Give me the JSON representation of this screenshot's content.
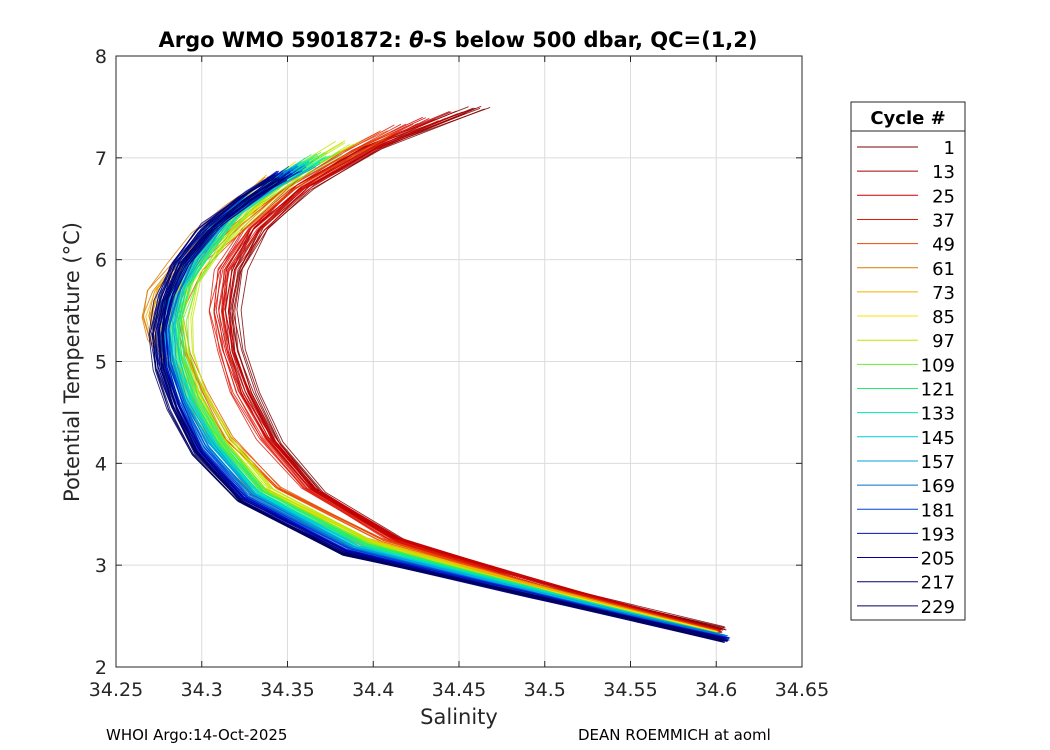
{
  "chart_data": {
    "type": "line",
    "title_prefix": "Argo WMO 5901872: ",
    "title_symbol": "θ",
    "title_suffix": "-S below 500 dbar,  QC=(1,2)",
    "xlabel": "Salinity",
    "ylabel": "Potential Temperature (°C)",
    "xlim": [
      34.25,
      34.65
    ],
    "ylim": [
      2,
      8
    ],
    "xticks": [
      34.25,
      34.3,
      34.35,
      34.4,
      34.45,
      34.5,
      34.55,
      34.6,
      34.65
    ],
    "xtick_labels": [
      "34.25",
      "34.3",
      "34.35",
      "34.4",
      "34.45",
      "34.5",
      "34.55",
      "34.6",
      "34.65"
    ],
    "yticks": [
      2,
      3,
      4,
      5,
      6,
      7,
      8
    ],
    "ytick_labels": [
      "2",
      "3",
      "4",
      "5",
      "6",
      "7",
      "8"
    ],
    "grid": true,
    "legend": {
      "title": "Cycle #",
      "position": "right",
      "entries": [
        {
          "label": "1",
          "color": "#800000"
        },
        {
          "label": "13",
          "color": "#a60000"
        },
        {
          "label": "25",
          "color": "#cc0000"
        },
        {
          "label": "37",
          "color": "#e01a0a"
        },
        {
          "label": "49",
          "color": "#e84c00"
        },
        {
          "label": "61",
          "color": "#d97a00"
        },
        {
          "label": "73",
          "color": "#f0b000"
        },
        {
          "label": "85",
          "color": "#ffe000"
        },
        {
          "label": "97",
          "color": "#bfe600"
        },
        {
          "label": "109",
          "color": "#66ee33"
        },
        {
          "label": "121",
          "color": "#22ee77"
        },
        {
          "label": "133",
          "color": "#00e6b0"
        },
        {
          "label": "145",
          "color": "#00ccdd"
        },
        {
          "label": "157",
          "color": "#00a0dd"
        },
        {
          "label": "169",
          "color": "#0070cc"
        },
        {
          "label": "181",
          "color": "#0040dd"
        },
        {
          "label": "193",
          "color": "#0010bb"
        },
        {
          "label": "205",
          "color": "#000099"
        },
        {
          "label": "217",
          "color": "#000077"
        },
        {
          "label": "229",
          "color": "#00005e"
        }
      ]
    },
    "series": [
      {
        "name": "1",
        "S": [
          34.462,
          34.4,
          34.36,
          34.335,
          34.322,
          34.318,
          34.322,
          34.33,
          34.345,
          34.37,
          34.42,
          34.5,
          34.605
        ],
        "T": [
          7.5,
          7.1,
          6.7,
          6.3,
          5.9,
          5.5,
          5.1,
          4.7,
          4.2,
          3.7,
          3.2,
          2.8,
          2.38
        ]
      },
      {
        "name": "13",
        "S": [
          34.45,
          34.4,
          34.36,
          34.333,
          34.318,
          34.315,
          34.318,
          34.326,
          34.34,
          34.365,
          34.415,
          34.5,
          34.603
        ],
        "T": [
          7.45,
          7.1,
          6.72,
          6.3,
          5.9,
          5.5,
          5.1,
          4.7,
          4.25,
          3.75,
          3.25,
          2.82,
          2.36
        ]
      },
      {
        "name": "25",
        "S": [
          34.435,
          34.395,
          34.358,
          34.33,
          34.315,
          34.312,
          34.316,
          34.325,
          34.34,
          34.365,
          34.415,
          34.5,
          34.602
        ],
        "T": [
          7.38,
          7.08,
          6.7,
          6.3,
          5.9,
          5.5,
          5.1,
          4.7,
          4.25,
          3.75,
          3.25,
          2.82,
          2.35
        ]
      },
      {
        "name": "37",
        "S": [
          34.42,
          34.39,
          34.355,
          34.328,
          34.312,
          34.308,
          34.312,
          34.32,
          34.335,
          34.36,
          34.41,
          34.5,
          34.602
        ],
        "T": [
          7.32,
          7.06,
          6.7,
          6.3,
          5.9,
          5.5,
          5.1,
          4.7,
          4.25,
          3.75,
          3.25,
          2.8,
          2.35
        ]
      },
      {
        "name": "49",
        "S": [
          34.41,
          34.385,
          34.35,
          34.32,
          34.295,
          34.285,
          34.29,
          34.3,
          34.315,
          34.345,
          34.405,
          34.49,
          34.6
        ],
        "T": [
          7.25,
          7.05,
          6.7,
          6.3,
          5.9,
          5.5,
          5.1,
          4.7,
          4.25,
          3.75,
          3.25,
          2.82,
          2.34
        ]
      },
      {
        "name": "61",
        "S": [
          34.34,
          34.32,
          34.3,
          34.285,
          34.272,
          34.268,
          34.272,
          34.285,
          34.3,
          34.33,
          34.395,
          34.49,
          34.6
        ],
        "T": [
          6.8,
          6.55,
          6.25,
          5.95,
          5.7,
          5.45,
          5.2,
          4.9,
          4.4,
          3.7,
          3.2,
          2.82,
          2.34
        ]
      },
      {
        "name": "73",
        "S": [
          34.345,
          34.325,
          34.305,
          34.29,
          34.278,
          34.272,
          34.275,
          34.288,
          34.302,
          34.33,
          34.395,
          34.49,
          34.6
        ],
        "T": [
          6.82,
          6.55,
          6.25,
          5.95,
          5.7,
          5.45,
          5.2,
          4.85,
          4.4,
          3.8,
          3.25,
          2.82,
          2.33
        ]
      },
      {
        "name": "85",
        "S": [
          34.36,
          34.34,
          34.318,
          34.3,
          34.288,
          34.282,
          34.284,
          34.292,
          34.308,
          34.335,
          34.398,
          34.49,
          34.6
        ],
        "T": [
          6.95,
          6.7,
          6.35,
          6.0,
          5.7,
          5.4,
          5.1,
          4.75,
          4.3,
          3.75,
          3.22,
          2.8,
          2.33
        ]
      },
      {
        "name": "97",
        "S": [
          34.385,
          34.36,
          34.335,
          34.31,
          34.296,
          34.29,
          34.292,
          34.3,
          34.315,
          34.34,
          34.4,
          34.49,
          34.6
        ],
        "T": [
          7.15,
          6.9,
          6.55,
          6.15,
          5.8,
          5.45,
          5.1,
          4.7,
          4.25,
          3.75,
          3.22,
          2.78,
          2.32
        ]
      },
      {
        "name": "109",
        "S": [
          34.375,
          34.35,
          34.325,
          34.305,
          34.292,
          34.287,
          34.289,
          34.297,
          34.312,
          34.338,
          34.398,
          34.49,
          34.601
        ],
        "T": [
          7.05,
          6.8,
          6.5,
          6.1,
          5.75,
          5.4,
          5.05,
          4.65,
          4.2,
          3.72,
          3.2,
          2.78,
          2.32
        ]
      },
      {
        "name": "121",
        "S": [
          34.37,
          34.345,
          34.32,
          34.302,
          34.29,
          34.285,
          34.287,
          34.295,
          34.31,
          34.335,
          34.395,
          34.49,
          34.601
        ],
        "T": [
          7.02,
          6.78,
          6.48,
          6.1,
          5.75,
          5.4,
          5.05,
          4.65,
          4.2,
          3.72,
          3.2,
          2.78,
          2.31
        ]
      },
      {
        "name": "133",
        "S": [
          34.365,
          34.342,
          34.318,
          34.3,
          34.288,
          34.283,
          34.285,
          34.293,
          34.308,
          34.333,
          34.393,
          34.49,
          34.602
        ],
        "T": [
          6.98,
          6.75,
          6.45,
          6.08,
          5.72,
          5.38,
          5.03,
          4.63,
          4.18,
          3.7,
          3.18,
          2.77,
          2.31
        ]
      },
      {
        "name": "145",
        "S": [
          34.362,
          34.34,
          34.315,
          34.298,
          34.286,
          34.281,
          34.283,
          34.291,
          34.306,
          34.332,
          34.392,
          34.49,
          34.603
        ],
        "T": [
          6.95,
          6.72,
          6.42,
          6.06,
          5.72,
          5.38,
          5.03,
          4.63,
          4.18,
          3.7,
          3.18,
          2.76,
          2.3
        ]
      },
      {
        "name": "157",
        "S": [
          34.36,
          34.338,
          34.312,
          34.296,
          34.284,
          34.279,
          34.281,
          34.289,
          34.304,
          34.33,
          34.39,
          34.49,
          34.605
        ],
        "T": [
          6.92,
          6.7,
          6.4,
          6.04,
          5.7,
          5.36,
          5.02,
          4.62,
          4.18,
          3.7,
          3.17,
          2.75,
          2.3
        ]
      },
      {
        "name": "169",
        "S": [
          34.355,
          34.335,
          34.31,
          34.292,
          34.282,
          34.278,
          34.28,
          34.288,
          34.302,
          34.328,
          34.388,
          34.49,
          34.606
        ],
        "T": [
          6.9,
          6.68,
          6.38,
          6.02,
          5.68,
          5.35,
          5.0,
          4.6,
          4.16,
          3.68,
          3.16,
          2.74,
          2.29
        ]
      },
      {
        "name": "181",
        "S": [
          34.352,
          34.332,
          34.308,
          34.29,
          34.281,
          34.277,
          34.279,
          34.287,
          34.3,
          34.326,
          34.386,
          34.49,
          34.607
        ],
        "T": [
          6.88,
          6.66,
          6.36,
          6.0,
          5.66,
          5.33,
          4.98,
          4.58,
          4.14,
          3.66,
          3.15,
          2.73,
          2.28
        ]
      },
      {
        "name": "193",
        "S": [
          34.35,
          34.33,
          34.306,
          34.289,
          34.28,
          34.276,
          34.278,
          34.286,
          34.299,
          34.325,
          34.385,
          34.49,
          34.607
        ],
        "T": [
          6.86,
          6.64,
          6.34,
          5.98,
          5.64,
          5.31,
          4.96,
          4.56,
          4.12,
          3.65,
          3.14,
          2.72,
          2.27
        ]
      },
      {
        "name": "205",
        "S": [
          34.348,
          34.328,
          34.305,
          34.288,
          34.279,
          34.275,
          34.277,
          34.285,
          34.298,
          34.324,
          34.384,
          34.49,
          34.606
        ],
        "T": [
          6.84,
          6.62,
          6.32,
          5.96,
          5.62,
          5.29,
          4.94,
          4.55,
          4.11,
          3.64,
          3.13,
          2.71,
          2.27
        ]
      },
      {
        "name": "217",
        "S": [
          34.346,
          34.326,
          34.303,
          34.287,
          34.278,
          34.274,
          34.276,
          34.284,
          34.297,
          34.323,
          34.383,
          34.49,
          34.605
        ],
        "T": [
          6.82,
          6.6,
          6.3,
          5.95,
          5.61,
          5.28,
          4.93,
          4.54,
          4.1,
          3.63,
          3.12,
          2.7,
          2.26
        ]
      },
      {
        "name": "229",
        "S": [
          34.344,
          34.324,
          34.302,
          34.286,
          34.277,
          34.273,
          34.275,
          34.283,
          34.296,
          34.322,
          34.382,
          34.49,
          34.604
        ],
        "T": [
          6.8,
          6.58,
          6.28,
          5.94,
          5.6,
          5.27,
          4.92,
          4.53,
          4.09,
          3.62,
          3.11,
          2.7,
          2.26
        ]
      }
    ]
  },
  "footer": {
    "left": "WHOI Argo:14-Oct-2025",
    "right": "DEAN ROEMMICH at aoml"
  }
}
